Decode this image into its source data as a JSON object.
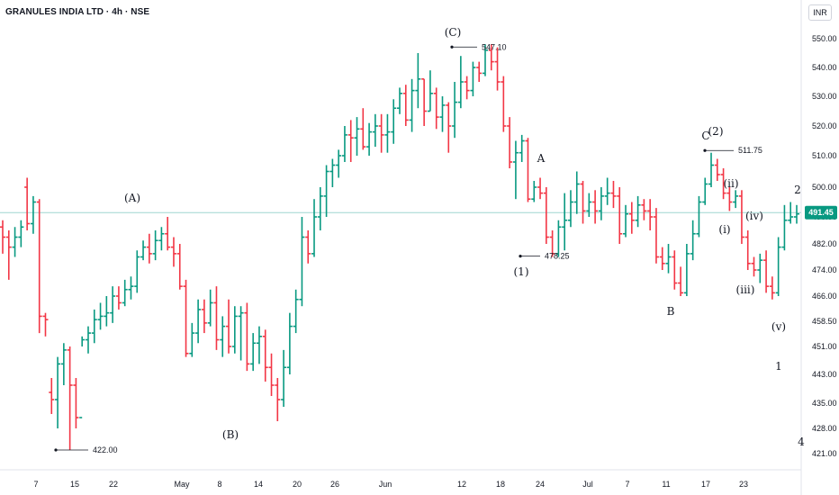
{
  "header": {
    "title": "GRANULES INDIA LTD · 4h · NSE",
    "currency_button": "INR"
  },
  "colors": {
    "up": "#089981",
    "down": "#f23645",
    "last_price_line": "#9fd6d0",
    "last_price_tag": "#089981",
    "text": "#131722",
    "grid_border": "#e0e3eb"
  },
  "chart_data": {
    "type": "ohlc",
    "title": "GRANULES INDIA LTD · 4h · NSE",
    "ylim": [
      418,
      556
    ],
    "y_ticks": [
      {
        "value": 550.0,
        "label": "550.00"
      },
      {
        "value": 540.0,
        "label": "540.00"
      },
      {
        "value": 530.0,
        "label": "530.00"
      },
      {
        "value": 520.0,
        "label": "520.00"
      },
      {
        "value": 510.0,
        "label": "510.00"
      },
      {
        "value": 500.0,
        "label": "500.00"
      },
      {
        "value": 490.0,
        "label": "490.00"
      },
      {
        "value": 482.0,
        "label": "482.00"
      },
      {
        "value": 474.0,
        "label": "474.00"
      },
      {
        "value": 466.0,
        "label": "466.00"
      },
      {
        "value": 458.5,
        "label": "458.50"
      },
      {
        "value": 451.0,
        "label": "451.00"
      },
      {
        "value": 443.0,
        "label": "443.00"
      },
      {
        "value": 435.0,
        "label": "435.00"
      },
      {
        "value": 428.0,
        "label": "428.00"
      },
      {
        "value": 421.0,
        "label": "421.00"
      }
    ],
    "x_ticks": [
      "7",
      "15",
      "22",
      "May",
      "8",
      "14",
      "20",
      "26",
      "Jun",
      "12",
      "18",
      "24",
      "Jul",
      "7",
      "11",
      "17",
      "23"
    ],
    "last_price": {
      "value": 491.45,
      "label": "491.45"
    },
    "price_annotations": [
      {
        "label": "422.00",
        "value": 422.0
      },
      {
        "label": "547.10",
        "value": 547.1
      },
      {
        "label": "478.25",
        "value": 478.25
      },
      {
        "label": "511.75",
        "value": 511.75
      }
    ],
    "wave_labels": [
      "(A)",
      "(B)",
      "(C)",
      "(1)",
      "A",
      "B",
      "C",
      "(2)",
      "(i)",
      "(ii)",
      "(iii)",
      "(iv)",
      "(v)",
      "1",
      "2",
      "4"
    ],
    "bars": [
      [
        487,
        484,
        489,
        479
      ],
      [
        484,
        481,
        486,
        471
      ],
      [
        481,
        484,
        487,
        478
      ],
      [
        484,
        487,
        489,
        481
      ],
      [
        500,
        488,
        503,
        486
      ],
      [
        488,
        495,
        497,
        485
      ],
      [
        495,
        460,
        496,
        455
      ],
      [
        460,
        459,
        461,
        454
      ],
      [
        438,
        436,
        442,
        432
      ],
      [
        436,
        446,
        448,
        428
      ],
      [
        446,
        450,
        452,
        440
      ],
      [
        450,
        440,
        451,
        422
      ],
      [
        440,
        431,
        442,
        428
      ],
      [
        431,
        453,
        454,
        451
      ],
      [
        453,
        455,
        457,
        449
      ],
      [
        455,
        459,
        462,
        452
      ],
      [
        459,
        460,
        464,
        456
      ],
      [
        460,
        461,
        466,
        457
      ],
      [
        461,
        466,
        469,
        458
      ],
      [
        466,
        464,
        469,
        462
      ],
      [
        464,
        468,
        471,
        463
      ],
      [
        468,
        469,
        472,
        465
      ],
      [
        469,
        478,
        480,
        467
      ],
      [
        478,
        481,
        483,
        477
      ],
      [
        481,
        479,
        485,
        476
      ],
      [
        479,
        483,
        486,
        477
      ],
      [
        483,
        485,
        487,
        480
      ],
      [
        485,
        481,
        490,
        480
      ],
      [
        481,
        479,
        484,
        475
      ],
      [
        479,
        469,
        482,
        468
      ],
      [
        469,
        449,
        471,
        448
      ],
      [
        449,
        455,
        458,
        448
      ],
      [
        455,
        462,
        465,
        452
      ],
      [
        462,
        458,
        465,
        455
      ],
      [
        458,
        464,
        468,
        457
      ],
      [
        464,
        453,
        469,
        450
      ],
      [
        453,
        457,
        460,
        448
      ],
      [
        457,
        451,
        465,
        449
      ],
      [
        451,
        460,
        463,
        449
      ],
      [
        460,
        461,
        463,
        447
      ],
      [
        461,
        446,
        464,
        444
      ],
      [
        446,
        452,
        455,
        444
      ],
      [
        452,
        454,
        457,
        446
      ],
      [
        454,
        445,
        456,
        441
      ],
      [
        445,
        440,
        449,
        437
      ],
      [
        440,
        436,
        442,
        430
      ],
      [
        436,
        445,
        450,
        434
      ],
      [
        445,
        457,
        461,
        443
      ],
      [
        457,
        465,
        468,
        455
      ],
      [
        465,
        484,
        490,
        463
      ],
      [
        484,
        479,
        486,
        476
      ],
      [
        479,
        490,
        496,
        478
      ],
      [
        490,
        497,
        500,
        486
      ],
      [
        497,
        505,
        507,
        490
      ],
      [
        505,
        507,
        509,
        500
      ],
      [
        507,
        510,
        512,
        503
      ],
      [
        510,
        517,
        520,
        508
      ],
      [
        517,
        516,
        522,
        508
      ],
      [
        516,
        519,
        523,
        510
      ],
      [
        519,
        513,
        526,
        512
      ],
      [
        513,
        518,
        521,
        510
      ],
      [
        518,
        520,
        524,
        513
      ],
      [
        520,
        517,
        524,
        511
      ],
      [
        517,
        518,
        524,
        511
      ],
      [
        518,
        526,
        529,
        514
      ],
      [
        526,
        531,
        533,
        524
      ],
      [
        531,
        522,
        534,
        520
      ],
      [
        522,
        532,
        536,
        518
      ],
      [
        532,
        536,
        545,
        526
      ],
      [
        536,
        525,
        536,
        520
      ],
      [
        525,
        531,
        539,
        525
      ],
      [
        531,
        523,
        533,
        519
      ],
      [
        523,
        527,
        530,
        518
      ],
      [
        527,
        520,
        528,
        511
      ],
      [
        520,
        528,
        535,
        516
      ],
      [
        528,
        535,
        544,
        526
      ],
      [
        535,
        532,
        537,
        529
      ],
      [
        532,
        540,
        542,
        530
      ],
      [
        540,
        538,
        542,
        535
      ],
      [
        538,
        546,
        548,
        537
      ],
      [
        546,
        542,
        548,
        539
      ],
      [
        542,
        535,
        547,
        532
      ],
      [
        535,
        520,
        537,
        518
      ],
      [
        520,
        508,
        523,
        506
      ],
      [
        508,
        511,
        515,
        496
      ],
      [
        511,
        515,
        517,
        508
      ],
      [
        515,
        496,
        516,
        495
      ],
      [
        496,
        500,
        502,
        495
      ],
      [
        500,
        498,
        503,
        496
      ],
      [
        498,
        484,
        500,
        482
      ],
      [
        484,
        479,
        486,
        478
      ],
      [
        479,
        487,
        489,
        478
      ],
      [
        487,
        489,
        498,
        480
      ],
      [
        489,
        495,
        499,
        487
      ],
      [
        495,
        501,
        505,
        491
      ],
      [
        501,
        492,
        502,
        488
      ],
      [
        492,
        495,
        498,
        490
      ],
      [
        495,
        492,
        499,
        488
      ],
      [
        492,
        497,
        500,
        489
      ],
      [
        497,
        498,
        503,
        494
      ],
      [
        498,
        497,
        502,
        493
      ],
      [
        497,
        485,
        500,
        482
      ],
      [
        485,
        491,
        494,
        484
      ],
      [
        491,
        489,
        495,
        485
      ],
      [
        489,
        494,
        497,
        487
      ],
      [
        494,
        492,
        496,
        489
      ],
      [
        492,
        490,
        496,
        486
      ],
      [
        490,
        478,
        493,
        476
      ],
      [
        478,
        476,
        481,
        474
      ],
      [
        476,
        478,
        482,
        473
      ],
      [
        478,
        470,
        480,
        468
      ],
      [
        470,
        467,
        475,
        466
      ],
      [
        467,
        479,
        482,
        466
      ],
      [
        479,
        485,
        489,
        477
      ],
      [
        485,
        495,
        497,
        484
      ],
      [
        495,
        501,
        503,
        494
      ],
      [
        501,
        507,
        511,
        500
      ],
      [
        507,
        504,
        509,
        502
      ],
      [
        504,
        498,
        506,
        496
      ],
      [
        498,
        495,
        500,
        492
      ],
      [
        495,
        497,
        499,
        493
      ],
      [
        497,
        484,
        499,
        482
      ],
      [
        484,
        476,
        486,
        474
      ],
      [
        476,
        474,
        478,
        472
      ],
      [
        474,
        477,
        479,
        470
      ],
      [
        477,
        469,
        480,
        467
      ],
      [
        469,
        467,
        472,
        465
      ],
      [
        467,
        481,
        484,
        466
      ],
      [
        481,
        489,
        494,
        480
      ],
      [
        489,
        490,
        495,
        488
      ],
      [
        490,
        491,
        494,
        488
      ]
    ]
  }
}
